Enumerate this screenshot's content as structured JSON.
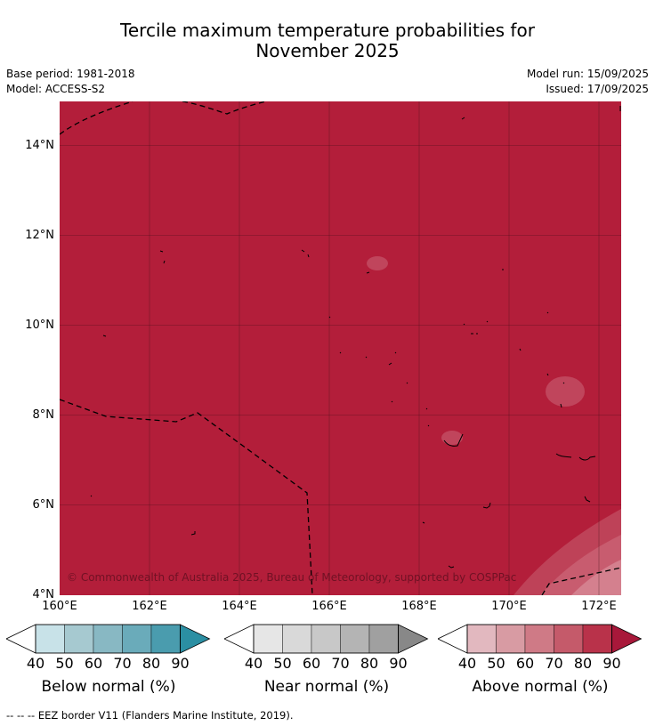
{
  "title_line1": "Tercile maximum temperature probabilities for",
  "title_line2": "November 2025",
  "base_period": "Base period: 1981-2018",
  "model": "Model: ACCESS-S2",
  "model_run": "Model run: 15/09/2025",
  "issued": "Issued: 17/09/2025",
  "credit": "© Commonwealth of Australia 2025, Bureau of Meteorology, supported by COSPPac",
  "footnote": "--  --  -- EEZ border V11 (Flanders Marine Institute, 2019).",
  "lat_labels": [
    "14°N",
    "12°N",
    "10°N",
    "8°N",
    "6°N",
    "4°N"
  ],
  "lon_labels": [
    "160°E",
    "162°E",
    "164°E",
    "166°E",
    "168°E",
    "170°E",
    "172°E"
  ],
  "legends": [
    {
      "label": "Below normal (%)",
      "ticks": [
        "40",
        "50",
        "60",
        "70",
        "80",
        "90"
      ],
      "colors": [
        "#ffffff",
        "#c8e2e8",
        "#a6c9d0",
        "#88b8c3",
        "#6aabba",
        "#4a9cae",
        "#2b8fa3"
      ]
    },
    {
      "label": "Near normal (%)",
      "ticks": [
        "40",
        "50",
        "60",
        "70",
        "80",
        "90"
      ],
      "colors": [
        "#ffffff",
        "#e6e6e6",
        "#d9d9d9",
        "#c8c8c8",
        "#b4b4b4",
        "#a0a0a0",
        "#888888"
      ]
    },
    {
      "label": "Above normal (%)",
      "ticks": [
        "40",
        "50",
        "60",
        "70",
        "80",
        "90"
      ],
      "colors": [
        "#ffffff",
        "#e2b8bf",
        "#d89ba3",
        "#cf7a86",
        "#c55a6a",
        "#b9324a",
        "#a8183a"
      ]
    }
  ],
  "map_fill_color": "#b31e3a"
}
